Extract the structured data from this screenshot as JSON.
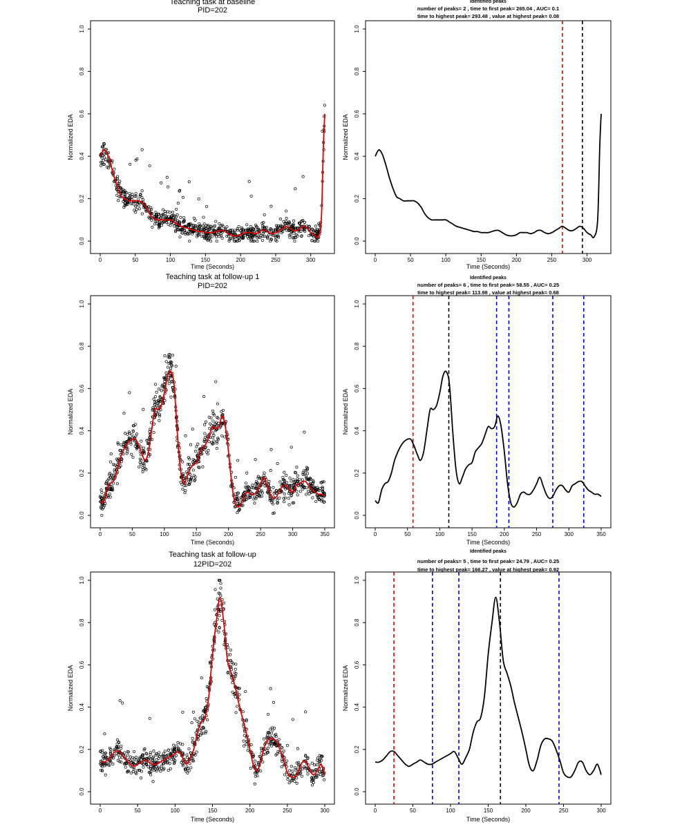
{
  "colors": {
    "smooth": "#e00000",
    "points": "#000000",
    "first_peak": "#e00000",
    "highest_peak": "#000000",
    "other_peak": "#0000e0"
  },
  "chart_data": [
    {
      "type": "scatter",
      "title": "Teaching task at baseline",
      "subtitle": "PID=202",
      "xlabel": "Time (Seconds)",
      "ylabel": "Normalized EDA",
      "xlim": [
        0,
        320
      ],
      "ylim": [
        0,
        1
      ],
      "xticks": [
        "0",
        "50",
        "100",
        "150",
        "200",
        "250",
        "300"
      ],
      "yticks": [
        "0.0",
        "0.2",
        "0.4",
        "0.6",
        "0.8",
        "1.0"
      ],
      "smooth_curve": {
        "x": [
          0,
          5,
          10,
          15,
          20,
          25,
          30,
          35,
          40,
          45,
          50,
          55,
          60,
          65,
          70,
          75,
          80,
          85,
          90,
          95,
          100,
          105,
          110,
          115,
          120,
          125,
          130,
          135,
          140,
          145,
          150,
          155,
          160,
          165,
          170,
          175,
          180,
          185,
          190,
          195,
          200,
          205,
          210,
          215,
          220,
          225,
          230,
          235,
          240,
          245,
          250,
          255,
          260,
          265,
          270,
          275,
          280,
          285,
          290,
          295,
          300,
          305,
          310,
          315,
          318,
          320
        ],
        "y": [
          0.4,
          0.43,
          0.41,
          0.36,
          0.3,
          0.25,
          0.21,
          0.2,
          0.19,
          0.19,
          0.19,
          0.19,
          0.18,
          0.16,
          0.13,
          0.11,
          0.1,
          0.1,
          0.1,
          0.1,
          0.1,
          0.09,
          0.08,
          0.07,
          0.065,
          0.06,
          0.055,
          0.05,
          0.045,
          0.045,
          0.04,
          0.04,
          0.04,
          0.045,
          0.05,
          0.05,
          0.04,
          0.03,
          0.025,
          0.025,
          0.03,
          0.04,
          0.04,
          0.04,
          0.035,
          0.04,
          0.05,
          0.05,
          0.04,
          0.035,
          0.04,
          0.05,
          0.06,
          0.07,
          0.06,
          0.05,
          0.05,
          0.06,
          0.07,
          0.06,
          0.04,
          0.03,
          0.02,
          0.1,
          0.45,
          0.6
        ]
      },
      "scatter_spread": 0.03
    },
    {
      "type": "line",
      "title": "Identified peaks",
      "subtitle": "number of peaks= 2 , time to first peak= 265.04 , AUC= 0.1",
      "subtitle2": "time to highest peak= 293.48 , value at highest peak= 0.08",
      "xlabel": "Time (Seconds)",
      "ylabel": "Normalized EDA",
      "xlim": [
        0,
        320
      ],
      "ylim": [
        0,
        1
      ],
      "xticks": [
        "0",
        "50",
        "100",
        "150",
        "200",
        "250",
        "300"
      ],
      "yticks": [
        "0.0",
        "0.2",
        "0.4",
        "0.6",
        "0.8",
        "1.0"
      ],
      "peaks": [
        {
          "x": 265.04,
          "kind": "first"
        },
        {
          "x": 293.48,
          "kind": "highest"
        }
      ]
    },
    {
      "type": "scatter",
      "title": "Teaching task at follow-up 1",
      "subtitle": "PID=202",
      "xlabel": "Time (Seconds)",
      "ylabel": "Normalized EDA",
      "xlim": [
        0,
        350
      ],
      "ylim": [
        0,
        1
      ],
      "xticks": [
        "0",
        "50",
        "100",
        "150",
        "200",
        "250",
        "300",
        "350"
      ],
      "yticks": [
        "0.0",
        "0.2",
        "0.4",
        "0.6",
        "0.8",
        "1.0"
      ],
      "smooth_curve": {
        "x": [
          0,
          5,
          10,
          15,
          20,
          25,
          30,
          35,
          40,
          45,
          50,
          55,
          60,
          65,
          70,
          75,
          80,
          85,
          90,
          95,
          100,
          105,
          110,
          115,
          120,
          125,
          130,
          135,
          140,
          145,
          150,
          155,
          160,
          165,
          170,
          175,
          180,
          185,
          190,
          195,
          200,
          205,
          210,
          215,
          220,
          225,
          230,
          235,
          240,
          245,
          250,
          255,
          260,
          265,
          270,
          275,
          280,
          285,
          290,
          295,
          300,
          305,
          310,
          315,
          320,
          325,
          330,
          335,
          340,
          345,
          350
        ],
        "y": [
          0.07,
          0.06,
          0.12,
          0.15,
          0.16,
          0.2,
          0.26,
          0.3,
          0.33,
          0.35,
          0.36,
          0.36,
          0.33,
          0.29,
          0.26,
          0.3,
          0.4,
          0.5,
          0.5,
          0.52,
          0.58,
          0.66,
          0.68,
          0.62,
          0.4,
          0.22,
          0.15,
          0.18,
          0.22,
          0.24,
          0.25,
          0.3,
          0.32,
          0.34,
          0.38,
          0.42,
          0.41,
          0.42,
          0.47,
          0.42,
          0.3,
          0.15,
          0.06,
          0.04,
          0.06,
          0.1,
          0.11,
          0.1,
          0.1,
          0.12,
          0.15,
          0.18,
          0.14,
          0.1,
          0.08,
          0.09,
          0.12,
          0.14,
          0.14,
          0.12,
          0.11,
          0.14,
          0.15,
          0.16,
          0.16,
          0.14,
          0.12,
          0.11,
          0.1,
          0.1,
          0.09
        ]
      },
      "scatter_spread": 0.04
    },
    {
      "type": "line",
      "title": "Identified peaks",
      "subtitle": "number of peaks= 6 , time to first peak= 58.55 , AUC= 0.25",
      "subtitle2": "time to highest peak= 113.98 , value at highest peak= 0.68",
      "xlabel": "Time (Seconds)",
      "ylabel": "Normalized EDA",
      "xlim": [
        0,
        350
      ],
      "ylim": [
        0,
        1
      ],
      "xticks": [
        "0",
        "50",
        "100",
        "150",
        "200",
        "250",
        "300",
        "350"
      ],
      "yticks": [
        "0.0",
        "0.2",
        "0.4",
        "0.6",
        "0.8",
        "1.0"
      ],
      "peaks": [
        {
          "x": 58.55,
          "kind": "first"
        },
        {
          "x": 113.98,
          "kind": "highest"
        },
        {
          "x": 188,
          "kind": "other"
        },
        {
          "x": 207,
          "kind": "other"
        },
        {
          "x": 275,
          "kind": "other"
        },
        {
          "x": 323,
          "kind": "other"
        }
      ]
    },
    {
      "type": "scatter",
      "title": "Teaching task at follow-up",
      "subtitle": "12PID=202",
      "xlabel": "Time (Seconds)",
      "ylabel": "Normalized EDA",
      "xlim": [
        0,
        300
      ],
      "ylim": [
        0,
        1
      ],
      "xticks": [
        "0",
        "50",
        "100",
        "150",
        "200",
        "250",
        "300"
      ],
      "yticks": [
        "0.0",
        "0.2",
        "0.4",
        "0.6",
        "0.8",
        "1.0"
      ],
      "smooth_curve": {
        "x": [
          0,
          5,
          10,
          15,
          20,
          25,
          30,
          35,
          40,
          45,
          50,
          55,
          60,
          65,
          70,
          75,
          80,
          85,
          90,
          95,
          100,
          105,
          110,
          115,
          120,
          125,
          130,
          135,
          140,
          145,
          150,
          155,
          160,
          165,
          170,
          175,
          180,
          185,
          190,
          195,
          200,
          205,
          210,
          215,
          220,
          225,
          230,
          235,
          240,
          245,
          250,
          255,
          260,
          265,
          270,
          275,
          280,
          285,
          290,
          295,
          300
        ],
        "y": [
          0.14,
          0.14,
          0.15,
          0.17,
          0.19,
          0.19,
          0.17,
          0.15,
          0.13,
          0.12,
          0.13,
          0.14,
          0.15,
          0.14,
          0.13,
          0.13,
          0.14,
          0.15,
          0.16,
          0.17,
          0.18,
          0.19,
          0.16,
          0.13,
          0.16,
          0.2,
          0.28,
          0.33,
          0.35,
          0.45,
          0.65,
          0.8,
          0.92,
          0.8,
          0.62,
          0.56,
          0.5,
          0.42,
          0.35,
          0.28,
          0.2,
          0.12,
          0.1,
          0.15,
          0.22,
          0.25,
          0.25,
          0.24,
          0.2,
          0.15,
          0.09,
          0.07,
          0.07,
          0.1,
          0.14,
          0.14,
          0.1,
          0.08,
          0.1,
          0.13,
          0.08
        ]
      },
      "scatter_spread": 0.04
    },
    {
      "type": "line",
      "title": "Identified peaks",
      "subtitle": "number of peaks= 5 , time to first peak= 24.79 , AUC= 0.25",
      "subtitle2": "time to highest peak= 166.27 , value at highest peak= 0.92",
      "xlabel": "Time (Seconds)",
      "ylabel": "Normalized EDA",
      "xlim": [
        0,
        300
      ],
      "ylim": [
        0,
        1
      ],
      "xticks": [
        "0",
        "50",
        "100",
        "150",
        "200",
        "250",
        "300"
      ],
      "yticks": [
        "0.0",
        "0.2",
        "0.4",
        "0.6",
        "0.8",
        "1.0"
      ],
      "peaks": [
        {
          "x": 24.79,
          "kind": "first"
        },
        {
          "x": 76,
          "kind": "other"
        },
        {
          "x": 111,
          "kind": "other"
        },
        {
          "x": 166.27,
          "kind": "highest"
        },
        {
          "x": 244,
          "kind": "other"
        }
      ]
    }
  ]
}
